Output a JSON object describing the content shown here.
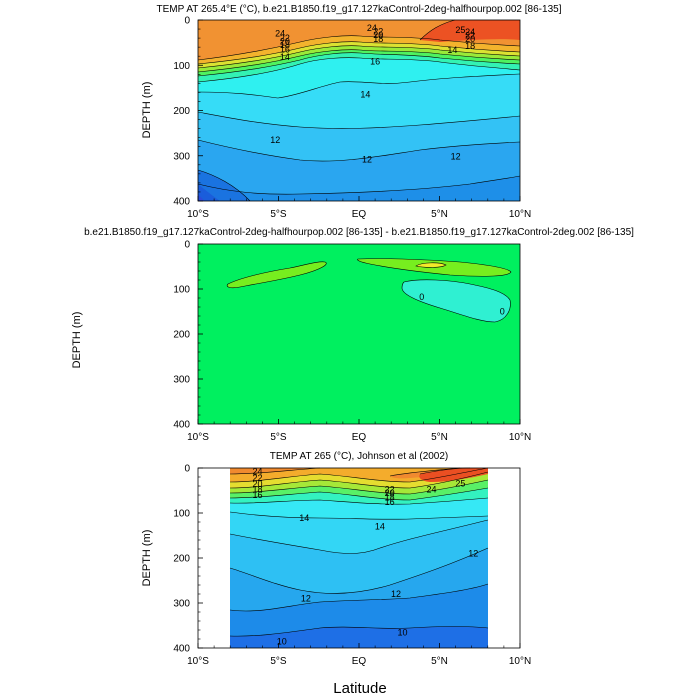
{
  "figure": {
    "xlabel": "Latitude",
    "x_ticks": [
      "10°S",
      "5°S",
      "EQ",
      "5°N",
      "10°N"
    ],
    "y_ticks": [
      "0",
      "100",
      "200",
      "300",
      "400"
    ]
  },
  "chart_data": [
    {
      "type": "contour",
      "title": "TEMP AT 265.4°E (°C), b.e21.B1850.f19_g17.127kaControl-2deg-halfhourpop.002 [86-135]",
      "ylabel": "DEPTH (m)",
      "xlim": [
        -10,
        10
      ],
      "ylim": [
        400,
        0
      ],
      "grid": false,
      "contour_labels": [
        {
          "text": "24",
          "lat": -4.9,
          "depth": 30
        },
        {
          "text": "22",
          "lat": -4.6,
          "depth": 40
        },
        {
          "text": "20",
          "lat": -4.6,
          "depth": 47
        },
        {
          "text": "18",
          "lat": -4.6,
          "depth": 55
        },
        {
          "text": "16",
          "lat": -4.6,
          "depth": 65
        },
        {
          "text": "14",
          "lat": -4.6,
          "depth": 82
        },
        {
          "text": "24",
          "lat": 0.8,
          "depth": 18
        },
        {
          "text": "22",
          "lat": 1.2,
          "depth": 25
        },
        {
          "text": "20",
          "lat": 1.2,
          "depth": 33
        },
        {
          "text": "18",
          "lat": 1.2,
          "depth": 42
        },
        {
          "text": "16",
          "lat": 1.0,
          "depth": 92
        },
        {
          "text": "14",
          "lat": 0.4,
          "depth": 165
        },
        {
          "text": "14",
          "lat": 5.8,
          "depth": 66
        },
        {
          "text": "25",
          "lat": 6.3,
          "depth": 22
        },
        {
          "text": "24",
          "lat": 6.9,
          "depth": 26
        },
        {
          "text": "22",
          "lat": 6.9,
          "depth": 34
        },
        {
          "text": "20",
          "lat": 6.9,
          "depth": 42
        },
        {
          "text": "18",
          "lat": 6.9,
          "depth": 58
        },
        {
          "text": "12",
          "lat": -5.2,
          "depth": 265
        },
        {
          "text": "12",
          "lat": 0.5,
          "depth": 308
        },
        {
          "text": "12",
          "lat": 6.0,
          "depth": 302
        }
      ]
    },
    {
      "type": "contour",
      "title": "b.e21.B1850.f19_g17.127kaControl-2deg-halfhourpop.002 [86-135] - b.e21.B1850.f19_g17.127kaControl-2deg.002 [86-135]",
      "ylabel": "DEPTH (m)",
      "xlim": [
        -10,
        10
      ],
      "ylim": [
        400,
        0
      ],
      "grid": false,
      "contour_labels": [
        {
          "text": "0",
          "lat": 3.9,
          "depth": 118
        },
        {
          "text": "0",
          "lat": 8.9,
          "depth": 150
        }
      ]
    },
    {
      "type": "contour",
      "title": "TEMP AT 265 (°C), Johnson et al (2002)",
      "ylabel": "DEPTH (m)",
      "xlim": [
        -10,
        10
      ],
      "ylim": [
        400,
        0
      ],
      "data_lat_range": [
        -8,
        8
      ],
      "grid": false,
      "contour_labels": [
        {
          "text": "24",
          "lat": -6.3,
          "depth": 8
        },
        {
          "text": "22",
          "lat": -6.3,
          "depth": 22
        },
        {
          "text": "20",
          "lat": -6.3,
          "depth": 35
        },
        {
          "text": "18",
          "lat": -6.3,
          "depth": 48
        },
        {
          "text": "16",
          "lat": -6.3,
          "depth": 60
        },
        {
          "text": "14",
          "lat": -3.4,
          "depth": 111
        },
        {
          "text": "14",
          "lat": 1.3,
          "depth": 130
        },
        {
          "text": "22",
          "lat": 1.9,
          "depth": 48
        },
        {
          "text": "20",
          "lat": 1.9,
          "depth": 55
        },
        {
          "text": "18",
          "lat": 1.9,
          "depth": 65
        },
        {
          "text": "16",
          "lat": 1.9,
          "depth": 75
        },
        {
          "text": "24",
          "lat": 4.5,
          "depth": 48
        },
        {
          "text": "25",
          "lat": 6.3,
          "depth": 34
        },
        {
          "text": "12",
          "lat": 7.1,
          "depth": 190
        },
        {
          "text": "12",
          "lat": 2.3,
          "depth": 280
        },
        {
          "text": "12",
          "lat": -3.3,
          "depth": 290
        },
        {
          "text": "10",
          "lat": 2.7,
          "depth": 365
        },
        {
          "text": "10",
          "lat": -4.8,
          "depth": 385
        }
      ]
    }
  ]
}
